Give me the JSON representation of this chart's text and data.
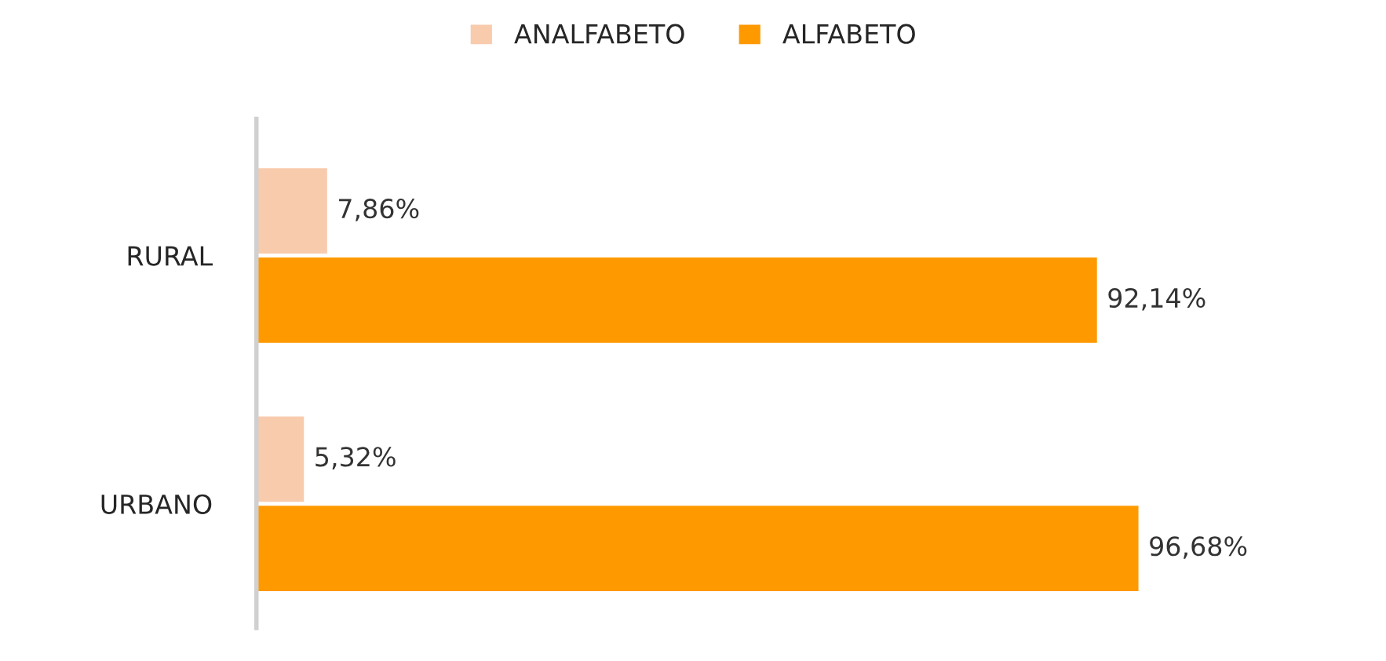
{
  "chart_data": {
    "type": "bar",
    "orientation": "horizontal",
    "categories": [
      "RURAL",
      "URBANO"
    ],
    "series": [
      {
        "name": "ANALFABETO",
        "color": "#f8cbad",
        "values": [
          7.86,
          5.32
        ],
        "value_labels": [
          "7,86%",
          "5,32%"
        ]
      },
      {
        "name": "ALFABETO",
        "color": "#ff9900",
        "values": [
          92.14,
          96.68
        ],
        "value_labels": [
          "92,14%",
          "96,68%"
        ]
      }
    ],
    "legend": "top",
    "grid": false
  }
}
